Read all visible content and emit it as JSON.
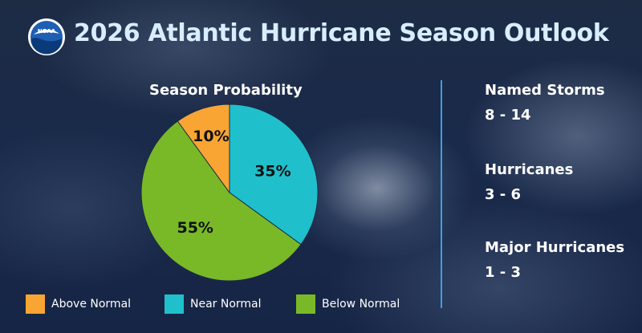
{
  "title": "2026 Atlantic Hurricane Season Outlook",
  "logo": {
    "icon": "noaa-logo-icon",
    "text": "NOAA",
    "colors": {
      "outer": "#ffffff",
      "sky": "#1e5fb4",
      "wave": "#0a3a7a"
    }
  },
  "chart_data": {
    "type": "pie",
    "title": "Season Probability",
    "legend_position": "bottom",
    "slices": [
      {
        "name": "Near Normal",
        "value": 35,
        "label": "35%",
        "color": "#1fc0cc"
      },
      {
        "name": "Below Normal",
        "value": 55,
        "label": "55%",
        "color": "#79b928"
      },
      {
        "name": "Above Normal",
        "value": 10,
        "label": "10%",
        "color": "#f9a533"
      }
    ],
    "legend": [
      {
        "name": "Above Normal",
        "color": "#f9a533"
      },
      {
        "name": "Near Normal",
        "color": "#1fc0cc"
      },
      {
        "name": "Below Normal",
        "color": "#79b928"
      }
    ]
  },
  "stats": [
    {
      "label": "Named Storms",
      "value": "8 - 14"
    },
    {
      "label": "Hurricanes",
      "value": "3 - 6"
    },
    {
      "label": "Major Hurricanes",
      "value": "1 - 3"
    }
  ],
  "divider_color": "#3aa0e8"
}
